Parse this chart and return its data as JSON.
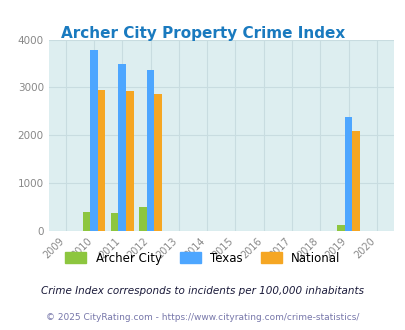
{
  "title": "Archer City Property Crime Index",
  "years": [
    2009,
    2010,
    2011,
    2012,
    2013,
    2014,
    2015,
    2016,
    2017,
    2018,
    2019,
    2020
  ],
  "archer_city": {
    "2010": 400,
    "2011": 380,
    "2012": 510,
    "2019": 130
  },
  "texas": {
    "2010": 3780,
    "2011": 3490,
    "2012": 3360,
    "2019": 2380
  },
  "national": {
    "2010": 2950,
    "2011": 2920,
    "2012": 2860,
    "2019": 2100
  },
  "color_archer": "#8dc63f",
  "color_texas": "#4da6ff",
  "color_national": "#f5a623",
  "bg_color": "#ddeef0",
  "ylim": [
    0,
    4000
  ],
  "yticks": [
    0,
    1000,
    2000,
    3000,
    4000
  ],
  "bar_width": 0.27,
  "footer1": "Crime Index corresponds to incidents per 100,000 inhabitants",
  "footer2": "© 2025 CityRating.com - https://www.cityrating.com/crime-statistics/",
  "title_color": "#1a7abf",
  "title_fontsize": 11,
  "grid_color": "#c8dce0",
  "tick_color": "#888888",
  "footer1_color": "#1a1a3a",
  "footer2_color": "#7777aa"
}
